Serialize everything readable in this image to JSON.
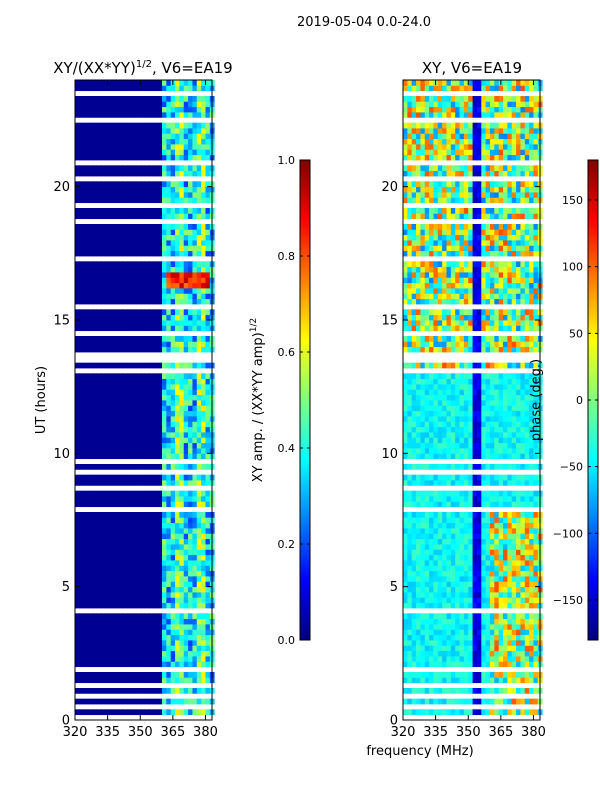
{
  "suptitle": "2019-05-04 0.0-24.0",
  "xlabel_shared": "frequency (MHz)",
  "colors": {
    "jet": [
      "#00007f",
      "#0000ff",
      "#007fff",
      "#00ffff",
      "#7fff7f",
      "#ffff00",
      "#ff7f00",
      "#ff0000",
      "#7f0000"
    ],
    "background": "#ffffff",
    "gap": "#ffffff"
  },
  "chart_data": [
    {
      "type": "heatmap",
      "title": "XY/(XX*YY)^(1/2), V6=EA19",
      "title_parts": {
        "base": "XY/(XX*YY)",
        "sup": "1/2",
        "tail": ", V6=EA19"
      },
      "ylabel": "UT (hours)",
      "xlabel": "",
      "xlim": [
        320,
        383
      ],
      "ylim": [
        0,
        24
      ],
      "xticks": [
        320,
        335,
        350,
        365,
        380
      ],
      "yticks": [
        0,
        5,
        10,
        15,
        20
      ],
      "colorbar": {
        "label_base": "XY amp. / (XX*YY amp)",
        "label_sup": "1/2",
        "range": [
          0.0,
          1.0
        ],
        "ticks": [
          "0.0",
          "0.2",
          "0.4",
          "0.6",
          "0.8",
          "1.0"
        ],
        "tick_values": [
          0.0,
          0.2,
          0.4,
          0.6,
          0.8,
          1.0
        ]
      },
      "data_gaps_hours": [
        [
          0.1,
          0.2
        ],
        [
          0.5,
          0.6
        ],
        [
          0.9,
          1.0
        ],
        [
          1.3,
          1.4
        ],
        [
          1.8,
          2.0
        ],
        [
          3.2,
          3.3
        ],
        [
          3.6,
          3.7
        ],
        [
          4.0,
          4.2
        ],
        [
          4.6,
          4.7
        ],
        [
          5.4,
          5.5
        ],
        [
          6.0,
          6.1
        ],
        [
          6.8,
          6.9
        ],
        [
          7.4,
          7.5
        ],
        [
          7.8,
          8.0
        ],
        [
          8.4,
          8.5
        ],
        [
          8.7,
          8.9
        ],
        [
          9.2,
          9.3
        ],
        [
          9.6,
          9.7
        ],
        [
          11.3,
          11.4
        ],
        [
          12.5,
          12.6
        ],
        [
          12.9,
          13.1
        ],
        [
          13.4,
          13.8
        ],
        [
          14.1,
          14.2
        ],
        [
          14.4,
          14.6
        ],
        [
          14.9,
          15.0
        ],
        [
          15.4,
          15.5
        ],
        [
          16.1,
          16.2
        ],
        [
          16.7,
          16.8
        ],
        [
          17.2,
          17.3
        ],
        [
          17.7,
          17.8
        ],
        [
          18.1,
          18.2
        ],
        [
          18.6,
          18.7
        ],
        [
          19.1,
          19.3
        ],
        [
          19.5,
          19.6
        ],
        [
          20.1,
          20.4
        ],
        [
          20.8,
          20.9
        ],
        [
          22.3,
          22.6
        ],
        [
          23.4,
          23.5
        ]
      ],
      "features": [
        {
          "freq_range": [
            320,
            360
          ],
          "value": 0.0,
          "note": "flagged/low amplitude"
        },
        {
          "freq_range": [
            360,
            383
          ],
          "value": 0.3,
          "note": "noisy band"
        },
        {
          "time_range": [
            16.0,
            16.6
          ],
          "freq_range": [
            362,
            381
          ],
          "value": 0.85,
          "note": "bright band"
        }
      ]
    },
    {
      "type": "heatmap",
      "title": "XY, V6=EA19",
      "ylabel": "",
      "xlabel": "frequency (MHz)",
      "xlim": [
        320,
        383
      ],
      "ylim": [
        0,
        24
      ],
      "xticks": [
        320,
        335,
        350,
        365,
        380
      ],
      "yticks": [
        0,
        5,
        10,
        15,
        20
      ],
      "colorbar": {
        "label": "phase (deg.)",
        "range": [
          -180,
          180
        ],
        "ticks": [
          "−150",
          "−100",
          "−50",
          "0",
          "50",
          "100",
          "150"
        ],
        "tick_values": [
          -150,
          -100,
          -50,
          0,
          50,
          100,
          150
        ]
      },
      "data_gaps_hours": [
        [
          0.1,
          0.2
        ],
        [
          0.5,
          0.6
        ],
        [
          0.9,
          1.0
        ],
        [
          1.3,
          1.4
        ],
        [
          1.8,
          2.0
        ],
        [
          3.2,
          3.3
        ],
        [
          3.6,
          3.7
        ],
        [
          4.0,
          4.2
        ],
        [
          4.6,
          4.7
        ],
        [
          5.4,
          5.5
        ],
        [
          6.0,
          6.1
        ],
        [
          6.8,
          6.9
        ],
        [
          7.4,
          7.5
        ],
        [
          7.8,
          8.0
        ],
        [
          8.4,
          8.5
        ],
        [
          8.7,
          8.9
        ],
        [
          9.2,
          9.3
        ],
        [
          9.6,
          9.7
        ],
        [
          11.3,
          11.4
        ],
        [
          12.5,
          12.6
        ],
        [
          12.9,
          13.1
        ],
        [
          13.4,
          13.8
        ],
        [
          14.1,
          14.2
        ],
        [
          14.4,
          14.6
        ],
        [
          14.9,
          15.0
        ],
        [
          15.4,
          15.5
        ],
        [
          16.1,
          16.2
        ],
        [
          16.7,
          16.8
        ],
        [
          17.2,
          17.3
        ],
        [
          17.7,
          17.8
        ],
        [
          18.1,
          18.2
        ],
        [
          18.6,
          18.7
        ],
        [
          19.1,
          19.3
        ],
        [
          19.5,
          19.6
        ],
        [
          20.1,
          20.4
        ],
        [
          20.8,
          20.9
        ],
        [
          22.3,
          22.6
        ],
        [
          23.4,
          23.5
        ]
      ],
      "features": [
        {
          "time_range": [
            0,
            13
          ],
          "value": -60,
          "note": "phase mostly cyan/blue"
        },
        {
          "time_range": [
            13,
            24
          ],
          "value": 20,
          "note": "mixed phase"
        },
        {
          "freq_range": [
            352,
            354
          ],
          "value": -160,
          "note": "dark vertical stripe"
        }
      ]
    }
  ]
}
